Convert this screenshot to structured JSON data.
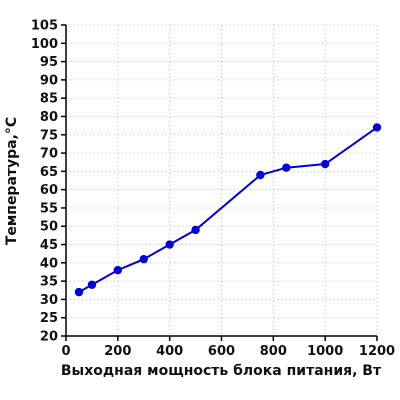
{
  "chart_data": {
    "type": "line",
    "xlabel": "Выходная мощность блока питания, Вт",
    "ylabel": "Температура,°C",
    "xlim": [
      0,
      1200
    ],
    "ylim": [
      20,
      105
    ],
    "x_ticks": [
      0,
      200,
      400,
      600,
      800,
      1000,
      1200
    ],
    "y_ticks": [
      20,
      25,
      30,
      35,
      40,
      45,
      50,
      55,
      60,
      65,
      70,
      75,
      80,
      85,
      90,
      95,
      100,
      105
    ],
    "grid": true,
    "grid_style": "dotted",
    "series": [
      {
        "color": "#0000dd",
        "x": [
          50,
          100,
          200,
          300,
          400,
          500,
          750,
          850,
          1000,
          1200
        ],
        "values": [
          32,
          34,
          38,
          41,
          45,
          49,
          64,
          66,
          67,
          77
        ]
      }
    ]
  }
}
